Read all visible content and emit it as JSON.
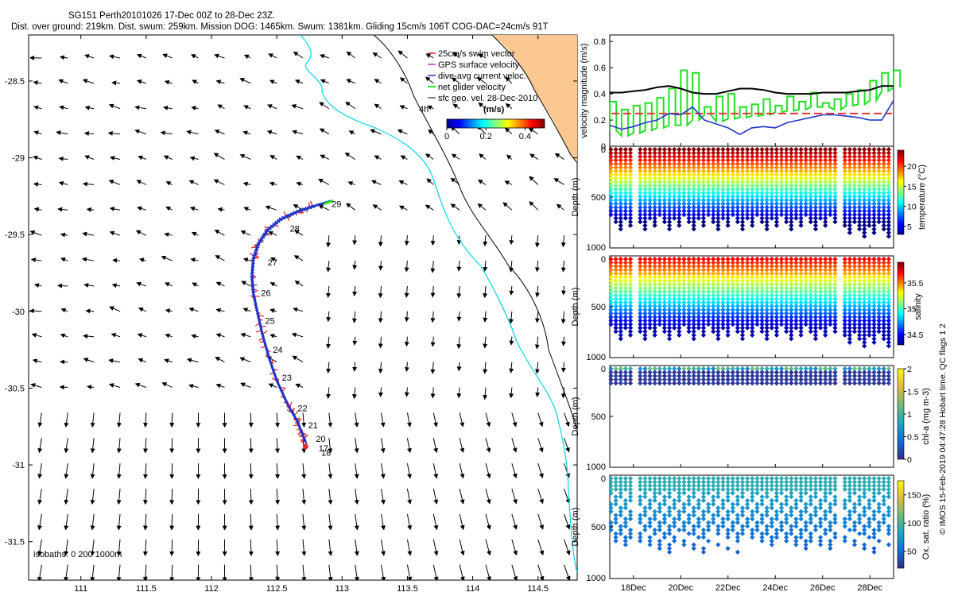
{
  "title_line1": "SG151 Perth20101026 17-Dec 00Z to 28-Dec 23Z.",
  "title_line2": "Dist. over ground: 219km. Dist. swum: 259km. Mission DOG: 1465km. Swum: 1381km. Gliding 15cm/s 106T COG-DAC=24cm/s 91T",
  "colors": {
    "swim": "#e8282a",
    "gps": "#cc33cc",
    "dac": "#1f35c9",
    "net": "#22e022",
    "land": "#fcc892",
    "coast": "#00d6ee",
    "isobath1000": "#000000"
  },
  "map": {
    "xlim": [
      110.6,
      114.8
    ],
    "ylim": [
      -31.75,
      -28.2
    ],
    "xticks": [
      "111",
      "111.5",
      "112",
      "112.5",
      "113",
      "113.5",
      "114",
      "114.5"
    ],
    "xtick_values": [
      111,
      111.5,
      112,
      112.5,
      113,
      113.5,
      114,
      114.5
    ],
    "yticks": [
      "-28.5",
      "-29",
      "-29.5",
      "-30",
      "-30.5",
      "-31",
      "-31.5"
    ],
    "ytick_values": [
      -28.5,
      -29,
      -29.5,
      -30,
      -30.5,
      -31,
      -31.5
    ],
    "isobath_label": "isobaths: 0 200 1000m",
    "legend": [
      "25cm/s swim vector",
      "GPS surface velocity",
      "dive-avg current veloc.",
      "net glider velocity",
      "sfc geo. vel. 28-Dec-2010"
    ],
    "time_label": "4h",
    "colorbar_title": "(m/s)",
    "colorbar_ticks": [
      "0",
      "0.2",
      "0.4"
    ],
    "colorbar_tick_values": [
      0,
      0.2,
      0.4
    ],
    "colorbar_max": 0.5,
    "track_labels": [
      "18",
      "17",
      "20",
      "21",
      "22",
      "23",
      "24",
      "25",
      "26",
      "27",
      "28",
      "29"
    ],
    "track_label_lon": [
      112.84,
      112.82,
      112.8,
      112.74,
      112.66,
      112.54,
      112.47,
      112.41,
      112.38,
      112.43,
      112.6,
      112.92
    ],
    "track_label_lat": [
      -30.92,
      -30.89,
      -30.83,
      -30.74,
      -30.63,
      -30.43,
      -30.25,
      -30.06,
      -29.88,
      -29.68,
      -29.46,
      -29.3
    ],
    "track_lon": [
      112.72,
      112.66,
      112.58,
      112.5,
      112.44,
      112.39,
      112.35,
      112.32,
      112.31,
      112.32,
      112.36,
      112.43,
      112.53,
      112.66,
      112.8,
      112.92
    ],
    "track_lat": [
      -30.85,
      -30.72,
      -30.6,
      -30.45,
      -30.3,
      -30.15,
      -30.0,
      -29.88,
      -29.78,
      -29.66,
      -29.56,
      -29.47,
      -29.4,
      -29.35,
      -29.31,
      -29.28
    ]
  },
  "series": {
    "velocity": {
      "ylabel": "velocity magnitude (m/s)",
      "yticks": [
        "0",
        "0.2",
        "0.4",
        "0.6",
        "0.8"
      ],
      "ytick_values": [
        0,
        0.2,
        0.4,
        0.6,
        0.8
      ],
      "ylim": [
        0,
        0.85
      ],
      "red_value": 0.25,
      "black": [
        0.41,
        0.41,
        0.42,
        0.43,
        0.45,
        0.46,
        0.44,
        0.41,
        0.4,
        0.4,
        0.42,
        0.44,
        0.44,
        0.43,
        0.41,
        0.4,
        0.4,
        0.4,
        0.41,
        0.41,
        0.41,
        0.42,
        0.43,
        0.46,
        0.46
      ],
      "blue": [
        0.16,
        0.13,
        0.15,
        0.18,
        0.2,
        0.25,
        0.24,
        0.3,
        0.2,
        0.17,
        0.14,
        0.09,
        0.14,
        0.15,
        0.14,
        0.18,
        0.2,
        0.22,
        0.24,
        0.24,
        0.23,
        0.22,
        0.2,
        0.2,
        0.35
      ],
      "green_high": [
        0.34,
        0.28,
        0.31,
        0.33,
        0.37,
        0.44,
        0.58,
        0.56,
        0.3,
        0.38,
        0.4,
        0.3,
        0.32,
        0.36,
        0.31,
        0.38,
        0.34,
        0.41,
        0.33,
        0.36,
        0.4,
        0.43,
        0.5,
        0.56,
        0.58
      ],
      "green_low": [
        0.12,
        0.08,
        0.1,
        0.12,
        0.14,
        0.16,
        0.16,
        0.2,
        0.24,
        0.19,
        0.21,
        0.22,
        0.23,
        0.24,
        0.26,
        0.27,
        0.28,
        0.3,
        0.3,
        0.28,
        0.31,
        0.32,
        0.35,
        0.42,
        0.45
      ]
    },
    "time": {
      "xlim": [
        17,
        29
      ],
      "xticks": [
        "18Dec",
        "20Dec",
        "22Dec",
        "24Dec",
        "26Dec",
        "28Dec"
      ],
      "xtick_values": [
        18,
        20,
        22,
        24,
        26,
        28
      ],
      "gaps": [
        [
          17.9,
          18.25
        ],
        [
          26.55,
          26.8
        ]
      ]
    },
    "temperature": {
      "label": "temperature (°C)",
      "cbar_ticks": [
        "5",
        "10",
        "15",
        "20"
      ],
      "cbar_tick_values": [
        5,
        10,
        15,
        20
      ],
      "cbar_range": [
        3,
        24
      ],
      "depth_ticks": [
        "0",
        "500",
        "1000"
      ]
    },
    "salinity": {
      "label": "salinity",
      "cbar_ticks": [
        "34.5",
        "35",
        "35.5"
      ],
      "cbar_tick_values": [
        34.5,
        35,
        35.5
      ],
      "cbar_range": [
        34.3,
        35.9
      ],
      "depth_ticks": [
        "0",
        "500",
        "1000"
      ]
    },
    "chla": {
      "label": "chl-a (mg m-3)",
      "cbar_ticks": [
        "0",
        "0.5",
        "1",
        "1.5",
        "2"
      ],
      "cbar_tick_values": [
        0,
        0.5,
        1,
        1.5,
        2
      ],
      "cbar_range": [
        0,
        2
      ],
      "depth_ticks": [
        "0",
        "500",
        "1000"
      ]
    },
    "oxygen": {
      "label": "Ox. sat. ratio (%)",
      "cbar_ticks": [
        "50",
        "100",
        "150"
      ],
      "cbar_tick_values": [
        50,
        100,
        150
      ],
      "cbar_range": [
        20,
        175
      ],
      "depth_ticks": [
        "0",
        "500",
        "1000"
      ]
    }
  },
  "side_label": "© IMOS 15-Feb-2019 04:47:28 Hobart time. QC flags 1 2",
  "depth_label": "Depth (m)"
}
